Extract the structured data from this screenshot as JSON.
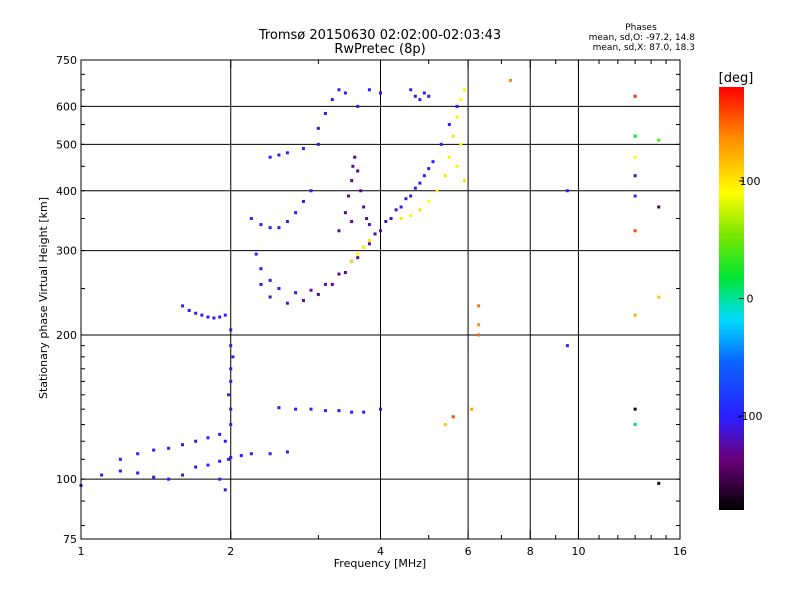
{
  "chart_data": {
    "type": "scatter",
    "title": "Tromsø 20150630 02:02:00-02:03:43",
    "subtitle": "RwPretec (8p)",
    "xlabel": "Frequency [MHz]",
    "ylabel": "Stationary phase Virtual Height [km]",
    "xscale": "log",
    "yscale": "log",
    "xlim": [
      1,
      16
    ],
    "ylim": [
      75,
      750
    ],
    "x_ticks": [
      1,
      2,
      4,
      6,
      8,
      10,
      16
    ],
    "y_ticks": [
      75,
      100,
      200,
      300,
      400,
      500,
      600,
      750
    ],
    "x_major_grid": [
      2,
      4,
      6,
      8,
      10
    ],
    "y_major_grid": [
      100,
      200,
      300,
      400,
      500,
      600
    ],
    "grid": true,
    "stats": {
      "heading": "Phases",
      "line_o": "mean, sd,O: -97.2, 14.8",
      "line_x": "mean, sd,X:  87.0, 18.3"
    },
    "colorbar": {
      "label": "[deg]",
      "min": -180,
      "max": 180,
      "ticks": [
        100,
        0,
        -100
      ]
    },
    "series": [
      {
        "points": [
          [
            1.0,
            97,
            -110
          ],
          [
            1.1,
            102,
            -105
          ],
          [
            1.2,
            104,
            -100
          ],
          [
            1.3,
            103,
            -100
          ],
          [
            1.4,
            101,
            -100
          ],
          [
            1.5,
            100,
            -100
          ],
          [
            1.6,
            102,
            -105
          ],
          [
            1.7,
            106,
            -105
          ],
          [
            1.8,
            107,
            -100
          ],
          [
            1.9,
            109,
            -100
          ],
          [
            2.0,
            111,
            -105
          ],
          [
            2.1,
            112,
            -100
          ],
          [
            2.2,
            113,
            -100
          ],
          [
            2.4,
            113,
            -105
          ],
          [
            2.6,
            114,
            -110
          ]
        ]
      },
      {
        "points": [
          [
            1.2,
            110,
            -100
          ],
          [
            1.3,
            113,
            -100
          ],
          [
            1.4,
            115,
            -105
          ],
          [
            1.5,
            116,
            -100
          ],
          [
            1.6,
            118,
            -100
          ],
          [
            1.7,
            120,
            -105
          ],
          [
            1.8,
            122,
            -105
          ],
          [
            1.9,
            124,
            -100
          ]
        ]
      },
      {
        "points": [
          [
            1.6,
            230,
            -100
          ],
          [
            1.65,
            225,
            -105
          ],
          [
            1.7,
            222,
            -100
          ],
          [
            1.75,
            220,
            -100
          ],
          [
            1.8,
            218,
            -100
          ],
          [
            1.85,
            217,
            -105
          ],
          [
            1.9,
            218,
            -100
          ],
          [
            1.95,
            220,
            -100
          ]
        ]
      },
      {
        "points": [
          [
            2.0,
            205,
            -105
          ],
          [
            2.0,
            190,
            -100
          ],
          [
            2.02,
            180,
            -100
          ],
          [
            2.0,
            170,
            -110
          ],
          [
            2.0,
            160,
            -105
          ],
          [
            1.98,
            150,
            -100
          ],
          [
            2.0,
            140,
            -110
          ],
          [
            2.0,
            130,
            -100
          ],
          [
            1.95,
            120,
            -100
          ],
          [
            1.98,
            110,
            -105
          ],
          [
            1.9,
            100,
            -100
          ],
          [
            1.95,
            95,
            -110
          ]
        ]
      },
      {
        "points": [
          [
            2.5,
            141,
            -105
          ],
          [
            2.7,
            140,
            -100
          ],
          [
            2.9,
            140,
            -100
          ],
          [
            3.1,
            139,
            -100
          ],
          [
            3.3,
            139,
            -105
          ],
          [
            3.5,
            138,
            -100
          ],
          [
            3.7,
            138,
            -100
          ],
          [
            4.0,
            140,
            -105
          ]
        ]
      },
      {
        "points": [
          [
            2.25,
            295,
            -100
          ],
          [
            2.3,
            275,
            -105
          ],
          [
            2.4,
            260,
            -110
          ],
          [
            2.5,
            250,
            -105
          ],
          [
            2.7,
            245,
            -110
          ],
          [
            2.9,
            248,
            -120
          ],
          [
            3.1,
            255,
            -125
          ],
          [
            3.3,
            268,
            -130
          ],
          [
            3.5,
            285,
            -135
          ],
          [
            3.7,
            305,
            -130
          ],
          [
            3.9,
            325,
            -125
          ],
          [
            4.1,
            345,
            -120
          ],
          [
            4.3,
            365,
            -115
          ],
          [
            4.5,
            385,
            -110
          ],
          [
            4.7,
            405,
            -105
          ],
          [
            4.9,
            430,
            -100
          ],
          [
            5.1,
            460,
            -100
          ],
          [
            5.3,
            500,
            -100
          ],
          [
            5.5,
            550,
            -100
          ],
          [
            5.7,
            600,
            -100
          ]
        ]
      },
      {
        "points": [
          [
            2.3,
            255,
            -110
          ],
          [
            2.4,
            240,
            -110
          ],
          [
            2.6,
            233,
            -120
          ],
          [
            2.8,
            236,
            -125
          ],
          [
            3.0,
            243,
            -130
          ],
          [
            3.2,
            255,
            -130
          ],
          [
            3.4,
            270,
            -135
          ],
          [
            3.6,
            290,
            -130
          ],
          [
            3.8,
            310,
            -125
          ],
          [
            4.0,
            330,
            -120
          ],
          [
            4.2,
            350,
            -115
          ],
          [
            4.4,
            370,
            -110
          ],
          [
            4.6,
            390,
            -105
          ],
          [
            4.8,
            415,
            -100
          ],
          [
            5.0,
            445,
            -100
          ]
        ]
      },
      {
        "points": [
          [
            3.3,
            330,
            -130
          ],
          [
            3.4,
            360,
            -135
          ],
          [
            3.45,
            390,
            -140
          ],
          [
            3.5,
            420,
            -135
          ],
          [
            3.52,
            450,
            -130
          ],
          [
            3.55,
            470,
            -135
          ],
          [
            3.6,
            440,
            -140
          ],
          [
            3.65,
            400,
            -135
          ],
          [
            3.7,
            370,
            -130
          ],
          [
            3.75,
            350,
            -125
          ],
          [
            3.8,
            340,
            -120
          ],
          [
            3.5,
            345,
            -130
          ]
        ]
      },
      {
        "points": [
          [
            2.2,
            350,
            -100
          ],
          [
            2.3,
            340,
            -105
          ],
          [
            2.4,
            335,
            -100
          ],
          [
            2.5,
            335,
            -100
          ],
          [
            2.6,
            345,
            -105
          ],
          [
            2.7,
            360,
            -100
          ],
          [
            2.8,
            380,
            -100
          ],
          [
            2.9,
            400,
            -105
          ]
        ]
      },
      {
        "points": [
          [
            2.4,
            470,
            -100
          ],
          [
            2.5,
            475,
            -105
          ],
          [
            2.6,
            480,
            -100
          ],
          [
            2.8,
            490,
            -100
          ]
        ]
      },
      {
        "points": [
          [
            3.0,
            500,
            -110
          ],
          [
            3.0,
            540,
            -115
          ],
          [
            3.1,
            580,
            -110
          ],
          [
            3.2,
            620,
            -105
          ],
          [
            3.3,
            650,
            -100
          ],
          [
            3.4,
            640,
            -105
          ],
          [
            3.6,
            600,
            -110
          ],
          [
            3.8,
            650,
            -100
          ],
          [
            4.0,
            640,
            -105
          ]
        ]
      },
      {
        "points": [
          [
            4.6,
            650,
            -100
          ],
          [
            4.7,
            630,
            -105
          ],
          [
            4.8,
            620,
            -100
          ],
          [
            4.9,
            640,
            -100
          ],
          [
            5.0,
            630,
            -105
          ]
        ]
      },
      {
        "points": [
          [
            4.4,
            350,
            110
          ],
          [
            4.6,
            355,
            105
          ],
          [
            4.8,
            365,
            110
          ],
          [
            5.0,
            380,
            100
          ],
          [
            5.2,
            400,
            105
          ],
          [
            5.4,
            430,
            110
          ],
          [
            5.5,
            470,
            105
          ],
          [
            5.6,
            520,
            110
          ],
          [
            5.7,
            570,
            105
          ],
          [
            5.8,
            620,
            100
          ],
          [
            5.9,
            650,
            95
          ],
          [
            5.8,
            500,
            100
          ],
          [
            5.7,
            450,
            105
          ],
          [
            5.9,
            420,
            110
          ]
        ]
      },
      {
        "points": [
          [
            3.5,
            285,
            110
          ],
          [
            3.6,
            295,
            105
          ],
          [
            3.7,
            305,
            100
          ],
          [
            3.8,
            315,
            110
          ]
        ]
      },
      {
        "points": [
          [
            6.3,
            230,
            150
          ],
          [
            6.3,
            210,
            140
          ],
          [
            6.3,
            200,
            150
          ],
          [
            7.3,
            680,
            140
          ],
          [
            9.5,
            400,
            -100
          ],
          [
            9.5,
            190,
            -100
          ],
          [
            13,
            630,
            170
          ],
          [
            13,
            520,
            20
          ],
          [
            13,
            470,
            100
          ],
          [
            13,
            430,
            -120
          ],
          [
            13,
            390,
            -90
          ],
          [
            13,
            330,
            160
          ],
          [
            13,
            220,
            130
          ],
          [
            13,
            140,
            -170
          ],
          [
            13,
            130,
            10
          ],
          [
            14.5,
            510,
            40
          ],
          [
            14.5,
            370,
            -150
          ],
          [
            14.5,
            240,
            120
          ],
          [
            14.5,
            98,
            -170
          ],
          [
            5.4,
            130,
            120
          ],
          [
            5.6,
            135,
            160
          ],
          [
            6.1,
            140,
            130
          ]
        ]
      }
    ]
  }
}
